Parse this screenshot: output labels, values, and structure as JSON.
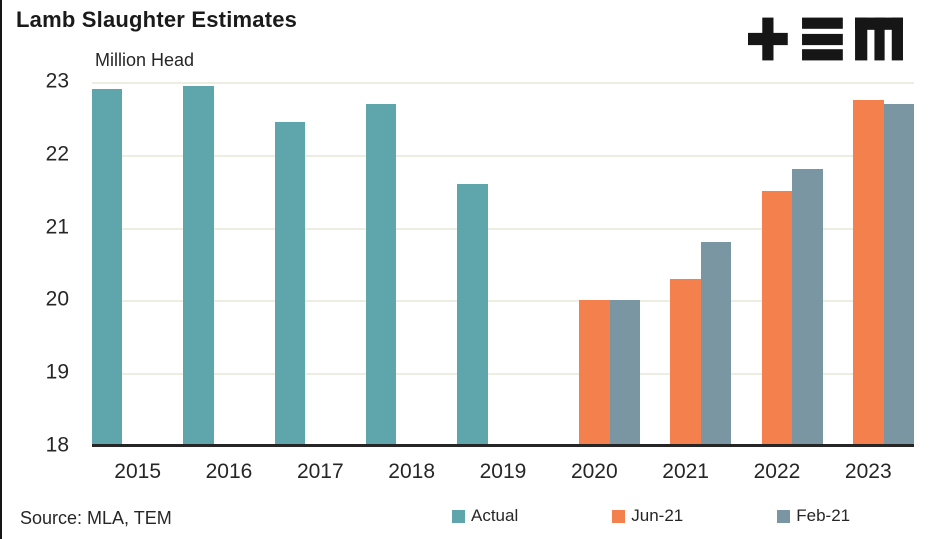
{
  "source_note": "Source: MLA, TEM",
  "brand": {
    "name": "TEM"
  },
  "chart_data": {
    "type": "bar",
    "title": "Lamb Slaughter Estimates",
    "ylabel": "Million Head",
    "xlabel": "",
    "categories": [
      "2015",
      "2016",
      "2017",
      "2018",
      "2019",
      "2020",
      "2021",
      "2022",
      "2023"
    ],
    "series": [
      {
        "name": "Actual",
        "color": "#5FA6AC",
        "values": [
          22.9,
          22.95,
          22.45,
          22.7,
          21.6,
          null,
          null,
          null,
          null
        ]
      },
      {
        "name": "Jun-21",
        "color": "#F4804D",
        "values": [
          null,
          null,
          null,
          null,
          null,
          20.0,
          20.3,
          21.5,
          22.75
        ]
      },
      {
        "name": "Feb-21",
        "color": "#7A96A2",
        "values": [
          null,
          null,
          null,
          null,
          null,
          20.0,
          20.8,
          21.8,
          22.7
        ]
      }
    ],
    "ylim": [
      18,
      23
    ],
    "yticks": [
      23,
      22,
      21,
      20,
      19,
      18
    ],
    "grid": true,
    "legend_position": "bottom",
    "colors": {
      "axis": "#262626",
      "gridline": "#EEEDE2",
      "text": "#262626"
    }
  }
}
